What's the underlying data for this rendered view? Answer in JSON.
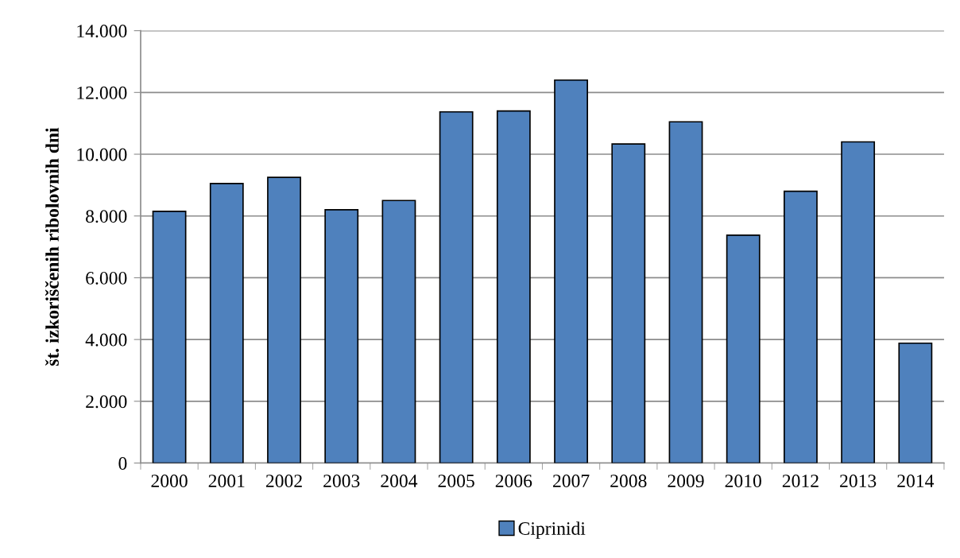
{
  "chart_data": {
    "type": "bar",
    "ylabel": "št. izkoriščenih ribolovnih dni",
    "categories": [
      "2000",
      "2001",
      "2002",
      "2003",
      "2004",
      "2005",
      "2006",
      "2007",
      "2008",
      "2009",
      "2010",
      "2012",
      "2013",
      "2014"
    ],
    "series": [
      {
        "name": "Ciprinidi",
        "color": "#4f81bd",
        "values": [
          8150,
          9050,
          9250,
          8200,
          8500,
          11370,
          11400,
          12400,
          10330,
          11050,
          7380,
          8800,
          10400,
          3880
        ]
      }
    ],
    "ylim": [
      0,
      14000
    ],
    "yticks": [
      0,
      {
        "value": 2000,
        "label": "2.000"
      },
      {
        "value": 4000,
        "label": "4.000"
      },
      {
        "value": 6000,
        "label": "6.000"
      },
      {
        "value": 8000,
        "label": "8.000"
      },
      {
        "value": 10000,
        "label": "10.000"
      },
      {
        "value": 12000,
        "label": "12.000"
      },
      {
        "value": 14000,
        "label": "14.000"
      }
    ],
    "grid": "y",
    "legend": "bottom"
  }
}
